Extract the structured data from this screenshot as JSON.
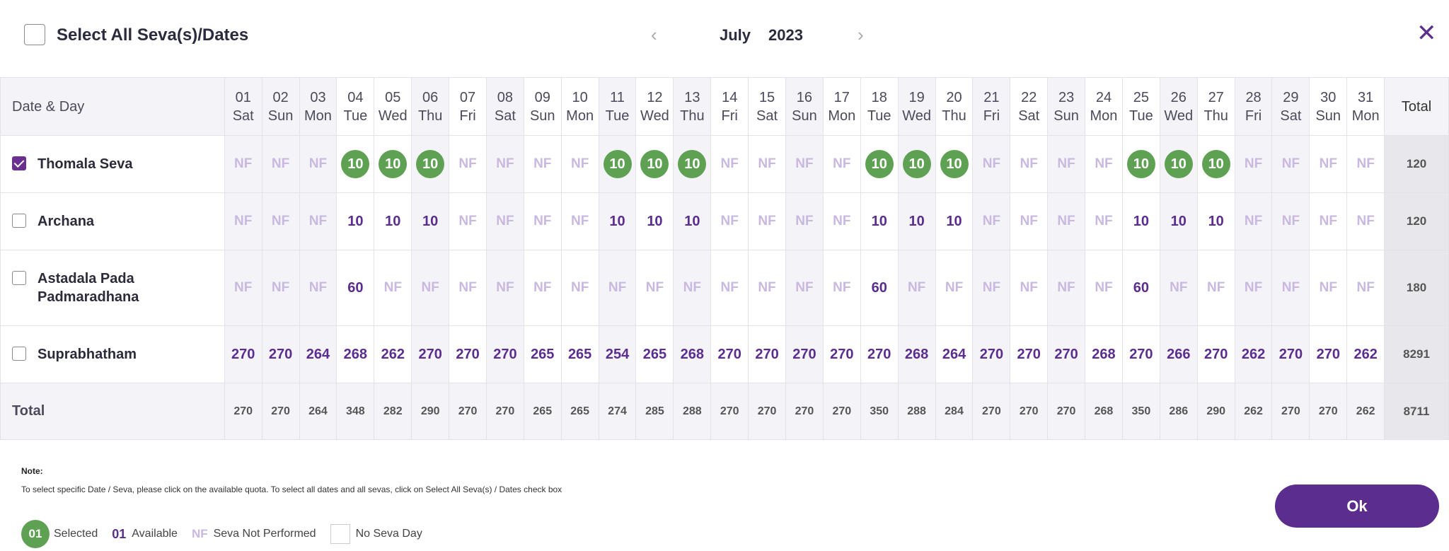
{
  "header": {
    "select_all_label": "Select All Seva(s)/Dates",
    "month": "July",
    "year": "2023"
  },
  "grid": {
    "first_col_label": "Date & Day",
    "total_col_label": "Total",
    "days": [
      {
        "d": "01",
        "w": "Sat"
      },
      {
        "d": "02",
        "w": "Sun"
      },
      {
        "d": "03",
        "w": "Mon"
      },
      {
        "d": "04",
        "w": "Tue"
      },
      {
        "d": "05",
        "w": "Wed"
      },
      {
        "d": "06",
        "w": "Thu"
      },
      {
        "d": "07",
        "w": "Fri"
      },
      {
        "d": "08",
        "w": "Sat"
      },
      {
        "d": "09",
        "w": "Sun"
      },
      {
        "d": "10",
        "w": "Mon"
      },
      {
        "d": "11",
        "w": "Tue"
      },
      {
        "d": "12",
        "w": "Wed"
      },
      {
        "d": "13",
        "w": "Thu"
      },
      {
        "d": "14",
        "w": "Fri"
      },
      {
        "d": "15",
        "w": "Sat"
      },
      {
        "d": "16",
        "w": "Sun"
      },
      {
        "d": "17",
        "w": "Mon"
      },
      {
        "d": "18",
        "w": "Tue"
      },
      {
        "d": "19",
        "w": "Wed"
      },
      {
        "d": "20",
        "w": "Thu"
      },
      {
        "d": "21",
        "w": "Fri"
      },
      {
        "d": "22",
        "w": "Sat"
      },
      {
        "d": "23",
        "w": "Sun"
      },
      {
        "d": "24",
        "w": "Mon"
      },
      {
        "d": "25",
        "w": "Tue"
      },
      {
        "d": "26",
        "w": "Wed"
      },
      {
        "d": "27",
        "w": "Thu"
      },
      {
        "d": "28",
        "w": "Fri"
      },
      {
        "d": "29",
        "w": "Sat"
      },
      {
        "d": "30",
        "w": "Sun"
      },
      {
        "d": "31",
        "w": "Mon"
      }
    ],
    "shaded_days": [
      "01",
      "02",
      "03",
      "06",
      "08",
      "11",
      "13",
      "16",
      "19",
      "21",
      "23",
      "26",
      "28",
      "29"
    ],
    "sevas": [
      {
        "name": "Thomala Seva",
        "checked": true,
        "total": "120",
        "cells": [
          "NF",
          "NF",
          "NF",
          "S:10",
          "S:10",
          "S:10",
          "NF",
          "NF",
          "NF",
          "NF",
          "S:10",
          "S:10",
          "S:10",
          "NF",
          "NF",
          "NF",
          "NF",
          "S:10",
          "S:10",
          "S:10",
          "NF",
          "NF",
          "NF",
          "NF",
          "S:10",
          "S:10",
          "S:10",
          "NF",
          "NF",
          "NF",
          "NF"
        ]
      },
      {
        "name": "Archana",
        "checked": false,
        "total": "120",
        "cells": [
          "NF",
          "NF",
          "NF",
          "10",
          "10",
          "10",
          "NF",
          "NF",
          "NF",
          "NF",
          "10",
          "10",
          "10",
          "NF",
          "NF",
          "NF",
          "NF",
          "10",
          "10",
          "10",
          "NF",
          "NF",
          "NF",
          "NF",
          "10",
          "10",
          "10",
          "NF",
          "NF",
          "NF",
          "NF"
        ]
      },
      {
        "name": "Astadala Pada Padmaradhana",
        "name_lines": [
          "Astadala Pada",
          "Padmaradhana"
        ],
        "checked": false,
        "total": "180",
        "cells": [
          "NF",
          "NF",
          "NF",
          "60",
          "NF",
          "NF",
          "NF",
          "NF",
          "NF",
          "NF",
          "NF",
          "NF",
          "NF",
          "NF",
          "NF",
          "NF",
          "NF",
          "60",
          "NF",
          "NF",
          "NF",
          "NF",
          "NF",
          "NF",
          "60",
          "NF",
          "NF",
          "NF",
          "NF",
          "NF",
          "NF"
        ]
      },
      {
        "name": "Suprabhatham",
        "checked": false,
        "total": "8291",
        "cells": [
          "270",
          "270",
          "264",
          "268",
          "262",
          "270",
          "270",
          "270",
          "265",
          "265",
          "254",
          "265",
          "268",
          "270",
          "270",
          "270",
          "270",
          "270",
          "268",
          "264",
          "270",
          "270",
          "270",
          "268",
          "270",
          "266",
          "270",
          "262",
          "270",
          "270",
          "262"
        ]
      }
    ],
    "total_row": {
      "label": "Total",
      "values": [
        "270",
        "270",
        "264",
        "348",
        "282",
        "290",
        "270",
        "270",
        "265",
        "265",
        "274",
        "285",
        "288",
        "270",
        "270",
        "270",
        "270",
        "350",
        "288",
        "284",
        "270",
        "270",
        "270",
        "268",
        "350",
        "286",
        "290",
        "262",
        "270",
        "270",
        "262"
      ],
      "grand_total": "8711"
    }
  },
  "note": {
    "title": "Note:",
    "text": "To select specific Date / Seva, please click on the available quota. To select all dates and all sevas, click on Select All Seva(s) / Dates check box"
  },
  "ok_label": "Ok",
  "legend": {
    "selected_sample": "01",
    "selected_label": "Selected",
    "available_sample": "01",
    "available_label": "Available",
    "nf_sample": "NF",
    "nf_label": "Seva Not Performed",
    "no_seva_label": "No Seva Day"
  },
  "colors": {
    "brand_purple": "#5b2d8e",
    "selected_green": "#5fa152",
    "nf_lilac": "#c9b8e0"
  },
  "icons": {
    "prev": "chevron-left-icon",
    "next": "chevron-right-icon",
    "close": "close-icon"
  }
}
